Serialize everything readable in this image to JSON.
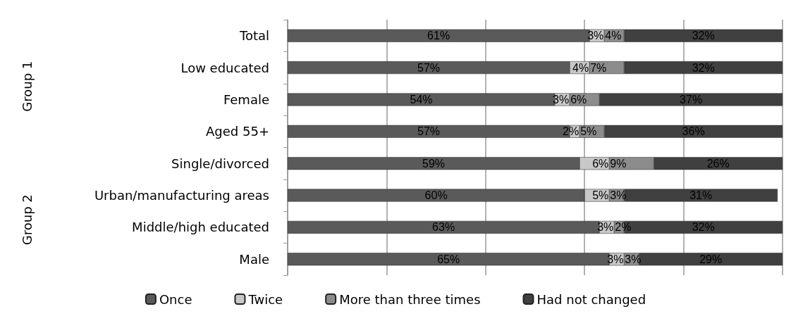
{
  "chart_data": {
    "type": "bar",
    "orientation": "horizontal",
    "stacked": true,
    "categories": [
      "Total",
      "Low educated",
      "Female",
      "Aged 55+",
      "Single/divorced",
      "Urban/manufacturing areas",
      "Middle/high educated",
      "Male"
    ],
    "series": [
      {
        "name": "Once",
        "color": "#5a5a5a",
        "values": [
          61,
          57,
          54,
          57,
          59,
          60,
          63,
          65
        ],
        "value_labels": [
          "61%",
          "57%",
          "54%",
          "57%",
          "59%",
          "60%",
          "63%",
          "65%"
        ]
      },
      {
        "name": "Twice",
        "color": "#c8c8c8",
        "values": [
          3,
          4,
          3,
          2,
          6,
          5,
          3,
          3
        ],
        "value_labels": [
          "3%",
          "4%",
          "3%",
          "2%",
          "6%",
          "5%",
          "3%",
          "3%"
        ]
      },
      {
        "name": "More than three times",
        "color": "#8c8c8c",
        "values": [
          4,
          7,
          6,
          5,
          9,
          3,
          2,
          3
        ],
        "value_labels": [
          "4%",
          "7%",
          "6%",
          "5%",
          "9%",
          "3%",
          "2%",
          "3%"
        ]
      },
      {
        "name": "Had not changed",
        "color": "#404040",
        "values": [
          32,
          32,
          37,
          36,
          26,
          31,
          32,
          29
        ],
        "value_labels": [
          "32%",
          "32%",
          "37%",
          "36%",
          "26%",
          "31%",
          "32%",
          "29%"
        ]
      }
    ],
    "xlim": [
      0,
      100
    ],
    "xticks": [
      {
        "value": 0,
        "label": null
      },
      {
        "value": 20,
        "label": null
      },
      {
        "value": 40,
        "label": null
      },
      {
        "value": 60,
        "label": null
      },
      {
        "value": 80,
        "label": null
      },
      {
        "value": 100,
        "label": null
      }
    ],
    "tick_labels": "y",
    "grid": "x",
    "legend": "bottom",
    "annotations": [
      "Group 1",
      "Group 2"
    ]
  }
}
